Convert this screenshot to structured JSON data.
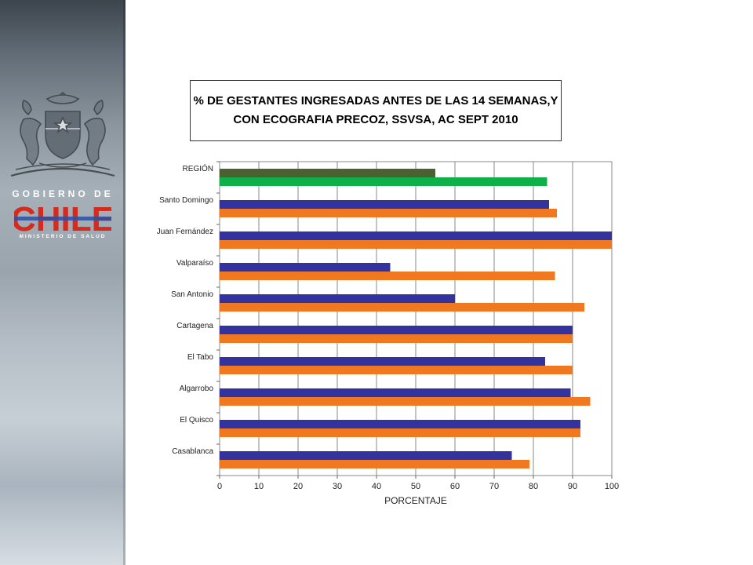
{
  "branding": {
    "gobierno": "GOBIERNO DE",
    "chile": "CHILE",
    "ministerio": "MINISTERIO DE SALUD"
  },
  "title": {
    "line1": "% DE GESTANTES INGRESADAS ANTES DE LAS 14 SEMANAS,Y",
    "line2": "CON ECOGRAFIA PRECOZ,  SSVSA, AC SEPT 2010"
  },
  "chart_data": {
    "type": "bar",
    "orientation": "horizontal",
    "title": "% DE GESTANTES INGRESADAS ANTES DE LAS 14 SEMANAS,Y CON ECOGRAFIA PRECOZ,  SSVSA, AC SEPT 2010",
    "xlabel": "PORCENTAJE",
    "ylabel": "",
    "xlim": [
      0,
      100
    ],
    "xticks": [
      "0",
      "10",
      "20",
      "30",
      "40",
      "50",
      "60",
      "70",
      "80",
      "90",
      "100"
    ],
    "grid": true,
    "legend": "none",
    "categories": [
      "REGIÓN",
      "Santo Domingo",
      "Juan Fernández",
      "Valparaíso",
      "San Antonio",
      "Cartagena",
      "El Tabo",
      "Algarrobo",
      "El Quisco",
      "Casablanca"
    ],
    "series": [
      {
        "values": [
          55,
          84,
          100,
          43.5,
          60,
          90,
          83,
          89.5,
          92,
          74.5
        ]
      },
      {
        "values": [
          83.5,
          86,
          100,
          85.5,
          93,
          90,
          90,
          94.5,
          92,
          79
        ]
      }
    ],
    "colors": {
      "series1": "#3333a0",
      "series2": "#f07820",
      "region_series1": "#4a6232",
      "region_series2": "#0fb04a"
    }
  }
}
